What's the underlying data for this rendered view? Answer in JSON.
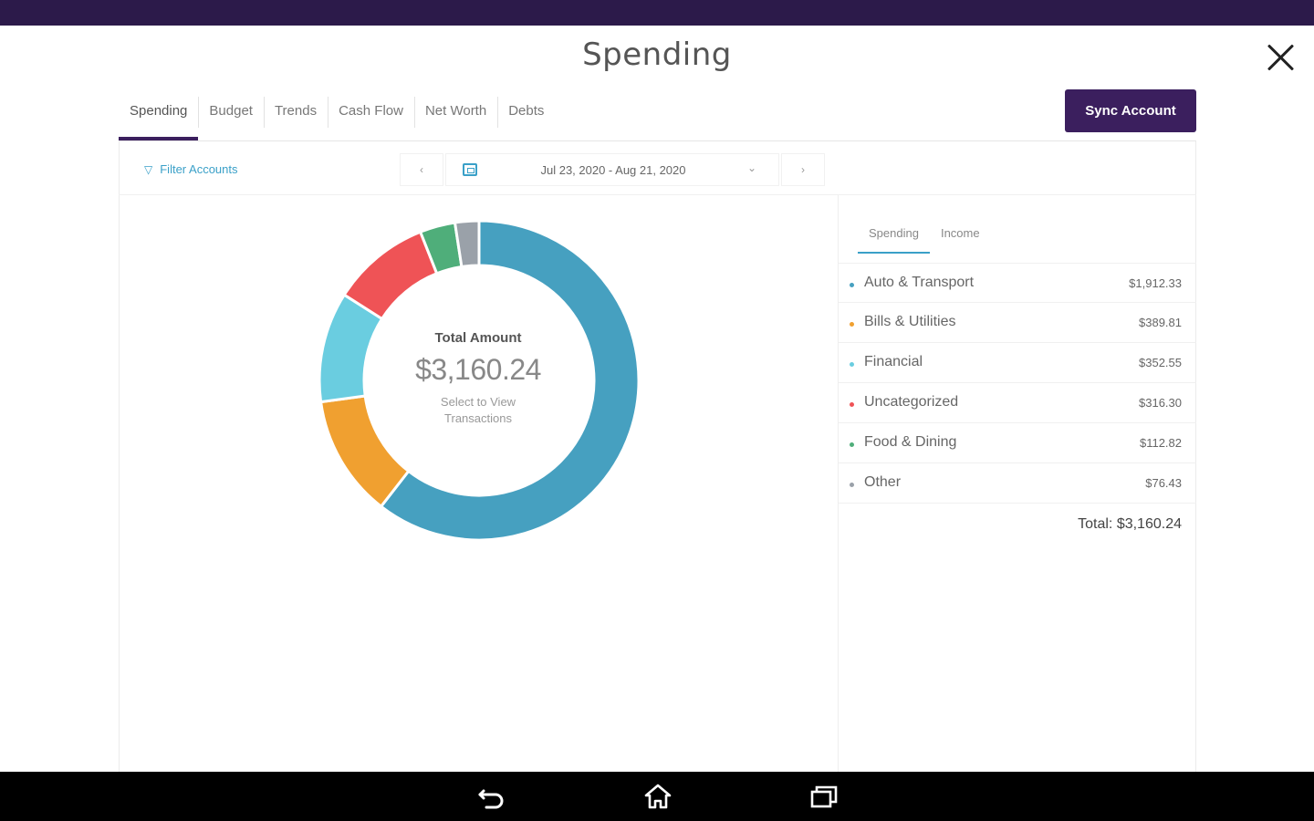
{
  "app": {
    "title": "Spending"
  },
  "tabs": [
    "Spending",
    "Budget",
    "Trends",
    "Cash Flow",
    "Net Worth",
    "Debts"
  ],
  "actions": {
    "sync_label": "Sync Account"
  },
  "filters": {
    "filter_label": "Filter Accounts",
    "date_range": "Jul 23, 2020 - Aug 21, 2020",
    "prev_icon": "chevron-left-icon",
    "next_icon": "chevron-right-icon"
  },
  "donut": {
    "label": "Total Amount",
    "amount": "$3,160.24",
    "hint_line1": "Select to View",
    "hint_line2": "Transactions"
  },
  "side_tabs": [
    "Spending",
    "Income"
  ],
  "categories": [
    {
      "name": "Auto & Transport",
      "value": "$1,912.33",
      "color": "#46a0c0"
    },
    {
      "name": "Bills & Utilities",
      "value": "$389.81",
      "color": "#f0a030"
    },
    {
      "name": "Financial",
      "value": "$352.55",
      "color": "#6acde0"
    },
    {
      "name": "Uncategorized",
      "value": "$316.30",
      "color": "#ef5356"
    },
    {
      "name": "Food & Dining",
      "value": "$112.82",
      "color": "#4fae7a"
    },
    {
      "name": "Other",
      "value": "$76.43",
      "color": "#9aa1a9"
    }
  ],
  "total_label": "Total: $3,160.24",
  "chart_data": {
    "type": "pie",
    "categories": [
      "Auto & Transport",
      "Bills & Utilities",
      "Financial",
      "Uncategorized",
      "Food & Dining",
      "Other"
    ],
    "values": [
      1912.33,
      389.81,
      352.55,
      316.3,
      112.82,
      76.43
    ],
    "colors": [
      "#46a0c0",
      "#f0a030",
      "#6acde0",
      "#ef5356",
      "#4fae7a",
      "#9aa1a9"
    ],
    "donut": true
  },
  "theme": {
    "brand": "#3b1f5e",
    "accent": "#3aa0c8"
  },
  "android_nav": [
    "back-icon",
    "home-icon",
    "recent-apps-icon"
  ]
}
